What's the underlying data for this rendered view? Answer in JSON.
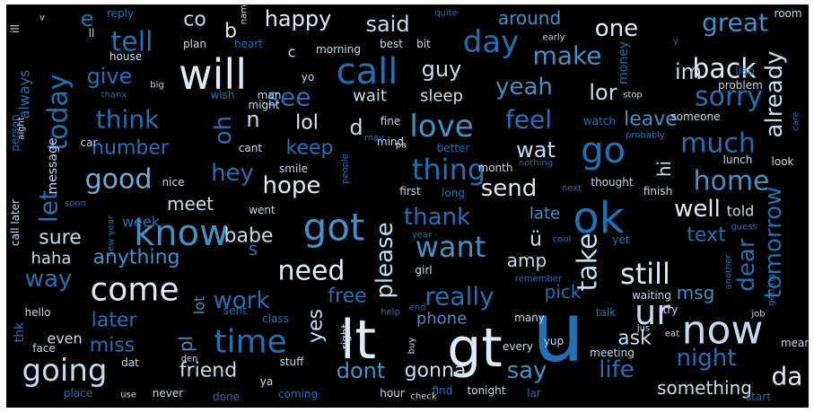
{
  "word_cloud": {
    "background": "#000000",
    "palette": [
      "#08306b",
      "#08519c",
      "#2171b5",
      "#4292c6",
      "#6baed6",
      "#9ecae1",
      "#c6dbef",
      "#deebf7"
    ],
    "words": [
      {
        "text": "u",
        "weight": 1.0,
        "color": "#2171b5"
      },
      {
        "text": "gt",
        "weight": 0.82,
        "color": "#deebf7"
      },
      {
        "text": "lt",
        "weight": 0.82,
        "color": "#deebf7"
      },
      {
        "text": "will",
        "weight": 0.7,
        "color": "#deebf7"
      },
      {
        "text": "ok",
        "weight": 0.7,
        "color": "#2171b5"
      },
      {
        "text": "got",
        "weight": 0.66,
        "color": "#4292c6"
      },
      {
        "text": "now",
        "weight": 0.62,
        "color": "#c6dbef"
      },
      {
        "text": "know",
        "weight": 0.6,
        "color": "#4292c6"
      },
      {
        "text": "call",
        "weight": 0.6,
        "color": "#2171b5"
      },
      {
        "text": "go",
        "weight": 0.58,
        "color": "#2171b5"
      },
      {
        "text": "come",
        "weight": 0.58,
        "color": "#deebf7"
      },
      {
        "text": "time",
        "weight": 0.56,
        "color": "#2171b5"
      },
      {
        "text": "love",
        "weight": 0.52,
        "color": "#4292c6"
      },
      {
        "text": "ur",
        "weight": 0.52,
        "color": "#c6dbef"
      },
      {
        "text": "going",
        "weight": 0.5,
        "color": "#c6dbef"
      },
      {
        "text": "good",
        "weight": 0.48,
        "color": "#6baed6"
      },
      {
        "text": "still",
        "weight": 0.48,
        "color": "#deebf7"
      },
      {
        "text": "day",
        "weight": 0.48,
        "color": "#2171b5"
      },
      {
        "text": "need",
        "weight": 0.46,
        "color": "#deebf7"
      },
      {
        "text": "thing",
        "weight": 0.46,
        "color": "#2171b5"
      },
      {
        "text": "want",
        "weight": 0.46,
        "color": "#4292c6"
      },
      {
        "text": "back",
        "weight": 0.44,
        "color": "#deebf7"
      },
      {
        "text": "sorry",
        "weight": 0.44,
        "color": "#2171b5"
      },
      {
        "text": "home",
        "weight": 0.44,
        "color": "#4292c6"
      },
      {
        "text": "take",
        "weight": 0.44,
        "color": "#c6dbef"
      },
      {
        "text": "today",
        "weight": 0.42,
        "color": "#2171b5"
      },
      {
        "text": "tell",
        "weight": 0.42,
        "color": "#2171b5"
      },
      {
        "text": "really",
        "weight": 0.42,
        "color": "#2171b5"
      },
      {
        "text": "great",
        "weight": 0.4,
        "color": "#4292c6"
      },
      {
        "text": "one",
        "weight": 0.4,
        "color": "#deebf7"
      },
      {
        "text": "make",
        "weight": 0.4,
        "color": "#4292c6"
      },
      {
        "text": "think",
        "weight": 0.4,
        "color": "#2171b5"
      },
      {
        "text": "see",
        "weight": 0.4,
        "color": "#2171b5"
      },
      {
        "text": "feel",
        "weight": 0.4,
        "color": "#2171b5"
      },
      {
        "text": "much",
        "weight": 0.4,
        "color": "#2171b5"
      },
      {
        "text": "already",
        "weight": 0.38,
        "color": "#c6dbef"
      },
      {
        "text": "tomorrow",
        "weight": 0.38,
        "color": "#2171b5"
      },
      {
        "text": "send",
        "weight": 0.38,
        "color": "#deebf7"
      },
      {
        "text": "hope",
        "weight": 0.38,
        "color": "#deebf7"
      },
      {
        "text": "yeah",
        "weight": 0.38,
        "color": "#4292c6"
      },
      {
        "text": "way",
        "weight": 0.38,
        "color": "#2171b5"
      },
      {
        "text": "hey",
        "weight": 0.38,
        "color": "#2171b5"
      },
      {
        "text": "work",
        "weight": 0.38,
        "color": "#2171b5"
      },
      {
        "text": "night",
        "weight": 0.38,
        "color": "#2171b5"
      },
      {
        "text": "dont",
        "weight": 0.36,
        "color": "#4292c6"
      },
      {
        "text": "let",
        "weight": 0.36,
        "color": "#2171b5"
      },
      {
        "text": "well",
        "weight": 0.36,
        "color": "#deebf7"
      },
      {
        "text": "thank",
        "weight": 0.36,
        "color": "#2171b5"
      },
      {
        "text": "please",
        "weight": 0.36,
        "color": "#c6dbef"
      },
      {
        "text": "life",
        "weight": 0.36,
        "color": "#2171b5"
      },
      {
        "text": "say",
        "weight": 0.36,
        "color": "#4292c6"
      },
      {
        "text": "da",
        "weight": 0.36,
        "color": "#deebf7"
      },
      {
        "text": "oh",
        "weight": 0.36,
        "color": "#2171b5"
      },
      {
        "text": "dear",
        "weight": 0.36,
        "color": "#2171b5"
      },
      {
        "text": "happy",
        "weight": 0.34,
        "color": "#deebf7"
      },
      {
        "text": "said",
        "weight": 0.34,
        "color": "#c6dbef"
      },
      {
        "text": "give",
        "weight": 0.34,
        "color": "#2171b5"
      },
      {
        "text": "guy",
        "weight": 0.34,
        "color": "#c6dbef"
      },
      {
        "text": "im",
        "weight": 0.34,
        "color": "#c6dbef"
      },
      {
        "text": "lor",
        "weight": 0.34,
        "color": "#c6dbef"
      },
      {
        "text": "wat",
        "weight": 0.34,
        "color": "#c6dbef"
      },
      {
        "text": "leave",
        "weight": 0.32,
        "color": "#4292c6"
      },
      {
        "text": "number",
        "weight": 0.32,
        "color": "#2171b5"
      },
      {
        "text": "keep",
        "weight": 0.32,
        "color": "#2171b5"
      },
      {
        "text": "babe",
        "weight": 0.32,
        "color": "#c6dbef"
      },
      {
        "text": "sure",
        "weight": 0.32,
        "color": "#c6dbef"
      },
      {
        "text": "later",
        "weight": 0.32,
        "color": "#2171b5"
      },
      {
        "text": "free",
        "weight": 0.32,
        "color": "#2171b5"
      },
      {
        "text": "yes",
        "weight": 0.32,
        "color": "#c6dbef"
      },
      {
        "text": "gonna",
        "weight": 0.32,
        "color": "#c6dbef"
      },
      {
        "text": "friend",
        "weight": 0.32,
        "color": "#c6dbef"
      },
      {
        "text": "ask",
        "weight": 0.32,
        "color": "#c6dbef"
      },
      {
        "text": "text",
        "weight": 0.32,
        "color": "#2171b5"
      },
      {
        "text": "something",
        "weight": 0.3,
        "color": "#c6dbef"
      },
      {
        "text": "lol",
        "weight": 0.3,
        "color": "#deebf7"
      },
      {
        "text": "miss",
        "weight": 0.3,
        "color": "#2171b5"
      },
      {
        "text": "anything",
        "weight": 0.3,
        "color": "#4292c6"
      },
      {
        "text": "meet",
        "weight": 0.3,
        "color": "#c6dbef"
      },
      {
        "text": "around",
        "weight": 0.3,
        "color": "#4292c6"
      },
      {
        "text": "co",
        "weight": 0.3,
        "color": "#c6dbef"
      },
      {
        "text": "hi",
        "weight": 0.3,
        "color": "#c6dbef"
      },
      {
        "text": "msg",
        "weight": 0.3,
        "color": "#4292c6"
      },
      {
        "text": "pick",
        "weight": 0.3,
        "color": "#2171b5"
      },
      {
        "text": "amp",
        "weight": 0.3,
        "color": "#c6dbef"
      },
      {
        "text": "ü",
        "weight": 0.3,
        "color": "#c6dbef"
      },
      {
        "text": "pl",
        "weight": 0.3,
        "color": "#4292c6"
      },
      {
        "text": "n",
        "weight": 0.3,
        "color": "#c6dbef"
      },
      {
        "text": "d",
        "weight": 0.3,
        "color": "#c6dbef"
      },
      {
        "text": "b",
        "weight": 0.28,
        "color": "#deebf7"
      },
      {
        "text": "e",
        "weight": 0.28,
        "color": "#2171b5"
      },
      {
        "text": "s",
        "weight": 0.28,
        "color": "#2171b5"
      },
      {
        "text": "sleep",
        "weight": 0.26,
        "color": "#c6dbef"
      },
      {
        "text": "late",
        "weight": 0.26,
        "color": "#4292c6"
      },
      {
        "text": "wait",
        "weight": 0.26,
        "color": "#c6dbef"
      },
      {
        "text": "phone",
        "weight": 0.26,
        "color": "#4292c6"
      },
      {
        "text": "haha",
        "weight": 0.26,
        "color": "#c6dbef"
      },
      {
        "text": "week",
        "weight": 0.24,
        "color": "#2171b5"
      },
      {
        "text": "lot",
        "weight": 0.24,
        "color": "#4292c6"
      },
      {
        "text": "told",
        "weight": 0.24,
        "color": "#c6dbef"
      },
      {
        "text": "always",
        "weight": 0.24,
        "color": "#2171b5"
      },
      {
        "text": "even",
        "weight": 0.24,
        "color": "#c6dbef"
      },
      {
        "text": "money",
        "weight": 0.22,
        "color": "#2171b5"
      },
      {
        "text": "message",
        "weight": 0.22,
        "color": "#c6dbef"
      },
      {
        "text": "thk",
        "weight": 0.22,
        "color": "#2171b5"
      },
      {
        "text": "hello",
        "weight": 0.2,
        "color": "#c6dbef"
      },
      {
        "text": "morning",
        "weight": 0.2,
        "color": "#c6dbef"
      },
      {
        "text": "first",
        "weight": 0.2,
        "color": "#c6dbef"
      },
      {
        "text": "thought",
        "weight": 0.2,
        "color": "#c6dbef"
      },
      {
        "text": "finish",
        "weight": 0.2,
        "color": "#c6dbef"
      },
      {
        "text": "went",
        "weight": 0.18,
        "color": "#c6dbef"
      },
      {
        "text": "nice",
        "weight": 0.18,
        "color": "#c6dbef"
      },
      {
        "text": "cant",
        "weight": 0.18,
        "color": "#c6dbef"
      },
      {
        "text": "car",
        "weight": 0.18,
        "color": "#c6dbef"
      },
      {
        "text": "smile",
        "weight": 0.18,
        "color": "#c6dbef"
      },
      {
        "text": "better",
        "weight": 0.18,
        "color": "#2171b5"
      },
      {
        "text": "long",
        "weight": 0.18,
        "color": "#2171b5"
      },
      {
        "text": "month",
        "weight": 0.18,
        "color": "#c6dbef"
      },
      {
        "text": "lunch",
        "weight": 0.18,
        "color": "#c6dbef"
      },
      {
        "text": "look",
        "weight": 0.18,
        "color": "#c6dbef"
      },
      {
        "text": "someone",
        "weight": 0.18,
        "color": "#c6dbef"
      },
      {
        "text": "meeting",
        "weight": 0.18,
        "color": "#c6dbef"
      },
      {
        "text": "class",
        "weight": 0.18,
        "color": "#2171b5"
      },
      {
        "text": "right",
        "weight": 0.18,
        "color": "#c6dbef"
      },
      {
        "text": "many",
        "weight": 0.18,
        "color": "#c6dbef"
      },
      {
        "text": "talk",
        "weight": 0.18,
        "color": "#2171b5"
      },
      {
        "text": "try",
        "weight": 0.18,
        "color": "#c6dbef"
      },
      {
        "text": "mean",
        "weight": 0.18,
        "color": "#c6dbef"
      },
      {
        "text": "tonight",
        "weight": 0.18,
        "color": "#c6dbef"
      },
      {
        "text": "hour",
        "weight": 0.18,
        "color": "#c6dbef"
      },
      {
        "text": "never",
        "weight": 0.18,
        "color": "#c6dbef"
      },
      {
        "text": "stuff",
        "weight": 0.18,
        "color": "#c6dbef"
      },
      {
        "text": "face",
        "weight": 0.18,
        "color": "#c6dbef"
      },
      {
        "text": "place",
        "weight": 0.18,
        "color": "#2171b5"
      },
      {
        "text": "fine",
        "weight": 0.18,
        "color": "#c6dbef"
      },
      {
        "text": "girl",
        "weight": 0.18,
        "color": "#c6dbef"
      },
      {
        "text": "yet",
        "weight": 0.18,
        "color": "#2171b5"
      },
      {
        "text": "reply",
        "weight": 0.16,
        "color": "#2171b5"
      },
      {
        "text": "name",
        "weight": 0.14,
        "color": "#c6dbef"
      },
      {
        "text": "quite",
        "weight": 0.14,
        "color": "#2171b5"
      },
      {
        "text": "room",
        "weight": 0.14,
        "color": "#c6dbef"
      },
      {
        "text": "plan",
        "weight": 0.14,
        "color": "#c6dbef"
      },
      {
        "text": "heart",
        "weight": 0.14,
        "color": "#2171b5"
      },
      {
        "text": "best",
        "weight": 0.14,
        "color": "#c6dbef"
      },
      {
        "text": "bit",
        "weight": 0.14,
        "color": "#c6dbef"
      },
      {
        "text": "early",
        "weight": 0.14,
        "color": "#c6dbef"
      },
      {
        "text": "house",
        "weight": 0.14,
        "color": "#c6dbef"
      },
      {
        "text": "big",
        "weight": 0.14,
        "color": "#c6dbef"
      },
      {
        "text": "thanx",
        "weight": 0.14,
        "color": "#2171b5"
      },
      {
        "text": "wish",
        "weight": 0.14,
        "color": "#2171b5"
      },
      {
        "text": "man",
        "weight": 0.14,
        "color": "#c6dbef"
      },
      {
        "text": "might",
        "weight": 0.14,
        "color": "#c6dbef"
      },
      {
        "text": "problem",
        "weight": 0.14,
        "color": "#c6dbef"
      },
      {
        "text": "liao",
        "weight": 0.14,
        "color": "#2171b5"
      },
      {
        "text": "watch",
        "weight": 0.14,
        "color": "#2171b5"
      },
      {
        "text": "stop",
        "weight": 0.12,
        "color": "#c6dbef"
      },
      {
        "text": "care",
        "weight": 0.14,
        "color": "#2171b5"
      },
      {
        "text": "mind",
        "weight": 0.14,
        "color": "#c6dbef"
      },
      {
        "text": "people",
        "weight": 0.14,
        "color": "#2171b5"
      },
      {
        "text": "next",
        "weight": 0.14,
        "color": "#2171b5"
      },
      {
        "text": "soon",
        "weight": 0.14,
        "color": "#2171b5"
      },
      {
        "text": "sent",
        "weight": 0.14,
        "color": "#2171b5"
      },
      {
        "text": "help",
        "weight": 0.14,
        "color": "#2171b5"
      },
      {
        "text": "end",
        "weight": 0.14,
        "color": "#2171b5"
      },
      {
        "text": "yup",
        "weight": 0.14,
        "color": "#c6dbef"
      },
      {
        "text": "every",
        "weight": 0.14,
        "color": "#c6dbef"
      },
      {
        "text": "buy",
        "weight": 0.14,
        "color": "#c6dbef"
      },
      {
        "text": "lar",
        "weight": 0.14,
        "color": "#2171b5"
      },
      {
        "text": "check",
        "weight": 0.12,
        "color": "#c6dbef"
      },
      {
        "text": "find",
        "weight": 0.14,
        "color": "#2171b5"
      },
      {
        "text": "coming",
        "weight": 0.14,
        "color": "#2171b5"
      },
      {
        "text": "done",
        "weight": 0.14,
        "color": "#2171b5"
      },
      {
        "text": "use",
        "weight": 0.12,
        "color": "#c6dbef"
      },
      {
        "text": "den",
        "weight": 0.12,
        "color": "#c6dbef"
      },
      {
        "text": "dat",
        "weight": 0.14,
        "color": "#c6dbef"
      },
      {
        "text": "ya",
        "weight": 0.14,
        "color": "#c6dbef"
      },
      {
        "text": "start",
        "weight": 0.14,
        "color": "#2171b5"
      },
      {
        "text": "getting",
        "weight": 0.14,
        "color": "#2171b5"
      },
      {
        "text": "another",
        "weight": 0.14,
        "color": "#2171b5"
      },
      {
        "text": "waiting",
        "weight": 0.14,
        "color": "#c6dbef"
      },
      {
        "text": "job",
        "weight": 0.12,
        "color": "#c6dbef"
      },
      {
        "text": "guess",
        "weight": 0.12,
        "color": "#2171b5"
      },
      {
        "text": "remember",
        "weight": 0.12,
        "color": "#2171b5"
      },
      {
        "text": "cool",
        "weight": 0.12,
        "color": "#2171b5"
      },
      {
        "text": "year",
        "weight": 0.12,
        "color": "#2171b5"
      },
      {
        "text": "new year",
        "weight": 0.12,
        "color": "#2171b5"
      },
      {
        "text": "call later",
        "weight": 0.14,
        "color": "#c6dbef"
      },
      {
        "text": "person",
        "weight": 0.14,
        "color": "#2171b5"
      },
      {
        "text": "aight",
        "weight": 0.12,
        "color": "#c6dbef"
      },
      {
        "text": "ill",
        "weight": 0.14,
        "color": "#c6dbef"
      },
      {
        "text": "ll",
        "weight": 0.14,
        "color": "#c6dbef"
      },
      {
        "text": "v",
        "weight": 0.12,
        "color": "#c6dbef"
      },
      {
        "text": "c",
        "weight": 0.18,
        "color": "#c6dbef"
      },
      {
        "text": "yo",
        "weight": 0.14,
        "color": "#c6dbef"
      },
      {
        "text": "pa",
        "weight": 0.12,
        "color": "#c6dbef"
      },
      {
        "text": "y",
        "weight": 0.12,
        "color": "#2171b5"
      },
      {
        "text": "jus",
        "weight": 0.12,
        "color": "#c6dbef"
      },
      {
        "text": "eat",
        "weight": 0.12,
        "color": "#c6dbef"
      },
      {
        "text": "probably",
        "weight": 0.12,
        "color": "#2171b5"
      },
      {
        "text": "nothing",
        "weight": 0.12,
        "color": "#2171b5"
      },
      {
        "text": "may",
        "weight": 0.12,
        "color": "#2171b5"
      }
    ]
  }
}
